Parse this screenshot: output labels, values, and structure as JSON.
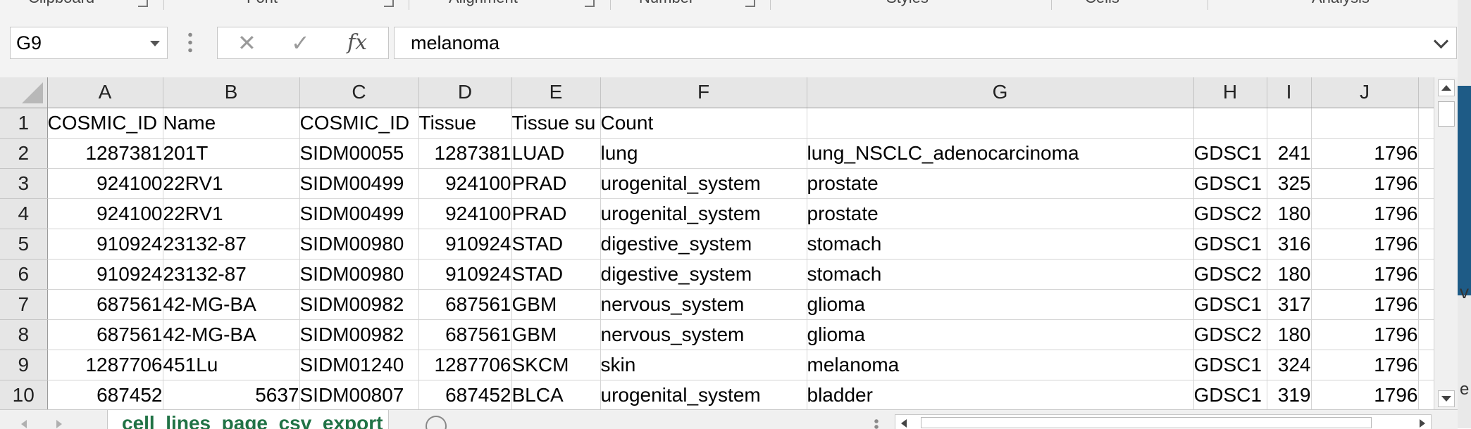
{
  "ribbon": {
    "groups": [
      {
        "label": "Clipboard",
        "launcher": true
      },
      {
        "label": "Font",
        "launcher": true
      },
      {
        "label": "Alignment",
        "launcher": true
      },
      {
        "label": "Number",
        "launcher": true
      },
      {
        "label": "Styles",
        "launcher": false
      },
      {
        "label": "Cells",
        "launcher": false
      },
      {
        "label": "Analysis",
        "launcher": false
      }
    ],
    "collapse_icon": "chevron-up-icon"
  },
  "formula_bar": {
    "name_box": "G9",
    "cancel_icon": "✕",
    "enter_icon": "✓",
    "fx_label": "fx",
    "content": "melanoma"
  },
  "grid": {
    "columns": [
      "A",
      "B",
      "C",
      "D",
      "E",
      "F",
      "G",
      "H",
      "I",
      "J"
    ],
    "rows": [
      {
        "num": "1",
        "cells": [
          "COSMIC_ID",
          "Name",
          "COSMIC_ID",
          "Tissue",
          "Tissue su",
          "Count",
          "",
          "",
          "",
          ""
        ]
      },
      {
        "num": "2",
        "cells": [
          "1287381",
          "201T",
          "SIDM00055",
          "1287381",
          "LUAD",
          "lung",
          "lung_NSCLC_adenocarcinoma",
          "GDSC1",
          "241",
          "1796"
        ]
      },
      {
        "num": "3",
        "cells": [
          "924100",
          "22RV1",
          "SIDM00499",
          "924100",
          "PRAD",
          "urogenital_system",
          "prostate",
          "GDSC1",
          "325",
          "1796"
        ]
      },
      {
        "num": "4",
        "cells": [
          "924100",
          "22RV1",
          "SIDM00499",
          "924100",
          "PRAD",
          "urogenital_system",
          "prostate",
          "GDSC2",
          "180",
          "1796"
        ]
      },
      {
        "num": "5",
        "cells": [
          "910924",
          "23132-87",
          "SIDM00980",
          "910924",
          "STAD",
          "digestive_system",
          "stomach",
          "GDSC1",
          "316",
          "1796"
        ]
      },
      {
        "num": "6",
        "cells": [
          "910924",
          "23132-87",
          "SIDM00980",
          "910924",
          "STAD",
          "digestive_system",
          "stomach",
          "GDSC2",
          "180",
          "1796"
        ]
      },
      {
        "num": "7",
        "cells": [
          "687561",
          "42-MG-BA",
          "SIDM00982",
          "687561",
          "GBM",
          "nervous_system",
          "glioma",
          "GDSC1",
          "317",
          "1796"
        ]
      },
      {
        "num": "8",
        "cells": [
          "687561",
          "42-MG-BA",
          "SIDM00982",
          "687561",
          "GBM",
          "nervous_system",
          "glioma",
          "GDSC2",
          "180",
          "1796"
        ]
      },
      {
        "num": "9",
        "cells": [
          "1287706",
          "451Lu",
          "SIDM01240",
          "1287706",
          "SKCM",
          "skin",
          "melanoma",
          "GDSC1",
          "324",
          "1796"
        ]
      },
      {
        "num": "10",
        "cells": [
          "687452",
          "5637",
          "SIDM00807",
          "687452",
          "BLCA",
          "urogenital_system",
          "bladder",
          "GDSC1",
          "319",
          "1796"
        ]
      }
    ]
  },
  "sheet_tabs": {
    "active": "cell_lines_page_csv_export",
    "add_icon": "⊕"
  }
}
